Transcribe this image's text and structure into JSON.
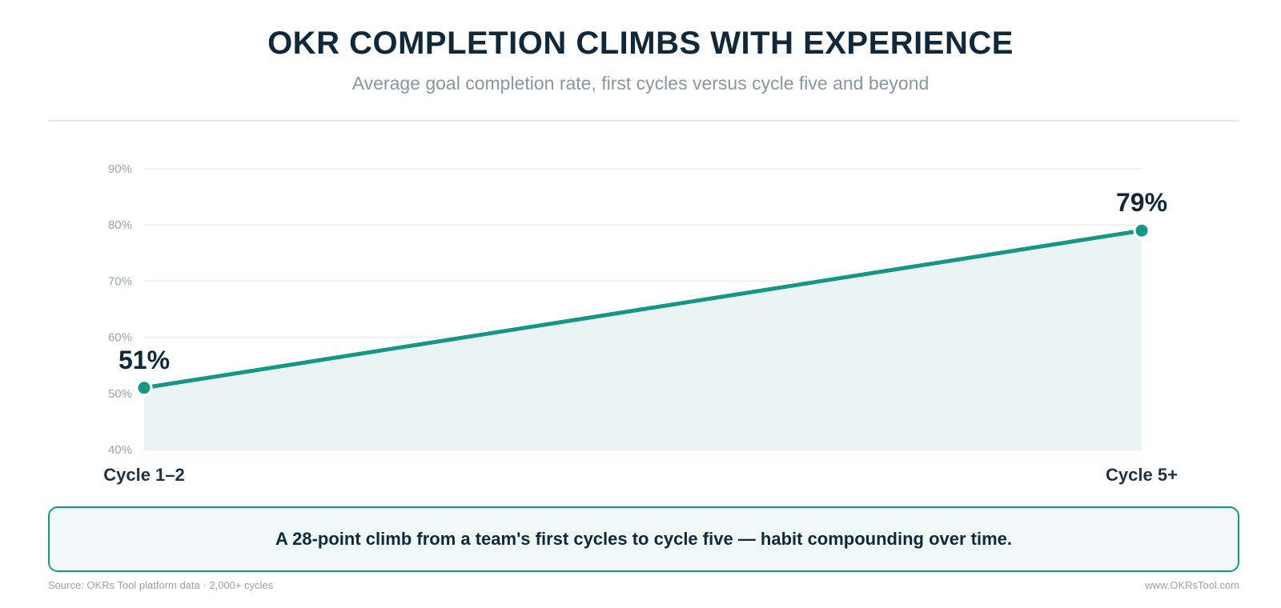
{
  "header": {
    "title": "OKR COMPLETION CLIMBS WITH EXPERIENCE",
    "subtitle": "Average goal completion rate, first cycles versus cycle five and beyond"
  },
  "chart_data": {
    "type": "area",
    "categories": [
      "Cycle 1–2",
      "Cycle 5+"
    ],
    "values": [
      51,
      79
    ],
    "value_labels": [
      "51%",
      "79%"
    ],
    "ylim": [
      40,
      90
    ],
    "yticks": [
      40,
      50,
      60,
      70,
      80,
      90
    ],
    "ytick_labels": [
      "40%",
      "50%",
      "60%",
      "70%",
      "80%",
      "90%"
    ],
    "grid": true,
    "legend": "none",
    "colors": {
      "line": "#159686",
      "fill": "#eaf5f3",
      "label": "#10283c"
    }
  },
  "callout": {
    "text": "A 28-point climb from a team's first cycles to cycle five — habit compounding over time."
  },
  "footer": {
    "source": "Source: OKRs Tool platform data · 2,000+ cycles",
    "site": "www.OKRsTool.com"
  }
}
